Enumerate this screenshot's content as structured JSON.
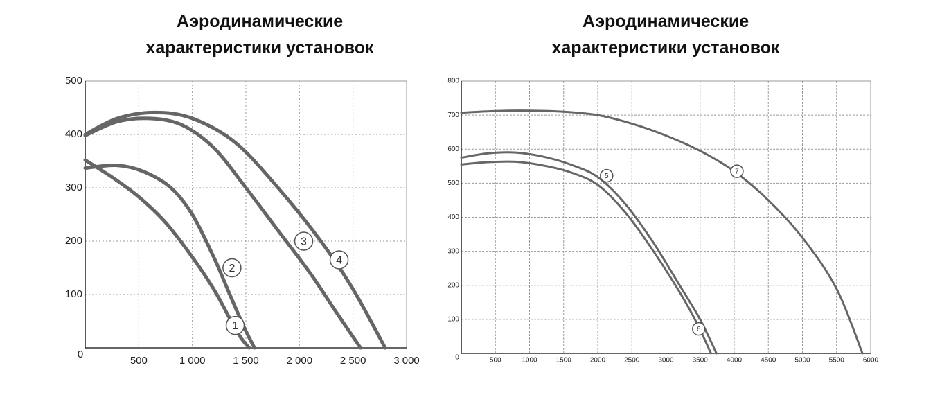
{
  "colors": {
    "curve": "#666666",
    "axis": "#333333",
    "grid": "#9a9a9a"
  },
  "chart_data": [
    {
      "type": "line",
      "title_lines": [
        "Аэродинамические",
        "характеристики установок"
      ],
      "xlim": [
        0,
        3000
      ],
      "ylim": [
        0,
        500
      ],
      "x_ticks": [
        0,
        500,
        1000,
        1500,
        2000,
        2500,
        3000
      ],
      "x_tick_labels": [
        "0",
        "500",
        "1 000",
        "1 500",
        "2 000",
        "2 500",
        "3 000"
      ],
      "y_ticks": [
        100,
        200,
        300,
        400,
        500
      ],
      "y_tick_labels": [
        "100",
        "200",
        "300",
        "400",
        "500"
      ],
      "grid": true,
      "series": [
        {
          "name": "1",
          "marker_at": [
            1400,
            42
          ],
          "points": [
            [
              0,
              352
            ],
            [
              250,
              320
            ],
            [
              500,
              283
            ],
            [
              750,
              235
            ],
            [
              1000,
              170
            ],
            [
              1200,
              110
            ],
            [
              1350,
              55
            ],
            [
              1450,
              20
            ],
            [
              1530,
              0
            ]
          ]
        },
        {
          "name": "2",
          "marker_at": [
            1370,
            150
          ],
          "points": [
            [
              0,
              337
            ],
            [
              300,
              342
            ],
            [
              550,
              330
            ],
            [
              800,
              300
            ],
            [
              1000,
              250
            ],
            [
              1200,
              170
            ],
            [
              1350,
              100
            ],
            [
              1480,
              40
            ],
            [
              1580,
              0
            ]
          ]
        },
        {
          "name": "3",
          "marker_at": [
            2040,
            200
          ],
          "points": [
            [
              0,
              398
            ],
            [
              300,
              424
            ],
            [
              600,
              430
            ],
            [
              900,
              418
            ],
            [
              1200,
              375
            ],
            [
              1500,
              300
            ],
            [
              1800,
              220
            ],
            [
              2100,
              140
            ],
            [
              2350,
              65
            ],
            [
              2570,
              0
            ]
          ]
        },
        {
          "name": "4",
          "marker_at": [
            2370,
            165
          ],
          "points": [
            [
              0,
              400
            ],
            [
              300,
              430
            ],
            [
              650,
              441
            ],
            [
              1000,
              430
            ],
            [
              1400,
              385
            ],
            [
              1800,
              300
            ],
            [
              2200,
              200
            ],
            [
              2500,
              110
            ],
            [
              2800,
              0
            ]
          ]
        }
      ]
    },
    {
      "type": "line",
      "title_lines": [
        "Аэродинамические",
        "характеристики установок"
      ],
      "xlim": [
        0,
        6000
      ],
      "ylim": [
        0,
        800
      ],
      "x_ticks": [
        0,
        500,
        1000,
        1500,
        2000,
        2500,
        3000,
        3500,
        4000,
        4500,
        5000,
        5500,
        6000
      ],
      "x_tick_labels": [
        "0",
        "500",
        "1000",
        "1500",
        "2000",
        "2500",
        "3000",
        "3500",
        "4000",
        "4500",
        "5000",
        "5500",
        "6000"
      ],
      "y_ticks": [
        100,
        200,
        300,
        400,
        500,
        600,
        700,
        800
      ],
      "y_tick_labels": [
        "100",
        "200",
        "300",
        "400",
        "500",
        "600",
        "700",
        "800"
      ],
      "grid": true,
      "series": [
        {
          "name": "5",
          "marker_at": [
            2130,
            522
          ],
          "points": [
            [
              0,
              575
            ],
            [
              400,
              588
            ],
            [
              800,
              590
            ],
            [
              1200,
              578
            ],
            [
              1600,
              555
            ],
            [
              2000,
              518
            ],
            [
              2400,
              440
            ],
            [
              2800,
              330
            ],
            [
              3200,
              200
            ],
            [
              3500,
              100
            ],
            [
              3740,
              0
            ]
          ]
        },
        {
          "name": "6",
          "marker_at": [
            3480,
            72
          ],
          "points": [
            [
              0,
              555
            ],
            [
              400,
              562
            ],
            [
              800,
              563
            ],
            [
              1200,
              552
            ],
            [
              1600,
              532
            ],
            [
              2000,
              495
            ],
            [
              2400,
              415
            ],
            [
              2800,
              305
            ],
            [
              3200,
              180
            ],
            [
              3450,
              90
            ],
            [
              3660,
              0
            ]
          ]
        },
        {
          "name": "7",
          "marker_at": [
            4040,
            535
          ],
          "points": [
            [
              0,
              707
            ],
            [
              500,
              712
            ],
            [
              1000,
              713
            ],
            [
              1500,
              710
            ],
            [
              2000,
              700
            ],
            [
              2500,
              675
            ],
            [
              3000,
              640
            ],
            [
              3500,
              595
            ],
            [
              4000,
              535
            ],
            [
              4500,
              450
            ],
            [
              5000,
              340
            ],
            [
              5500,
              190
            ],
            [
              5880,
              0
            ]
          ]
        }
      ]
    }
  ]
}
